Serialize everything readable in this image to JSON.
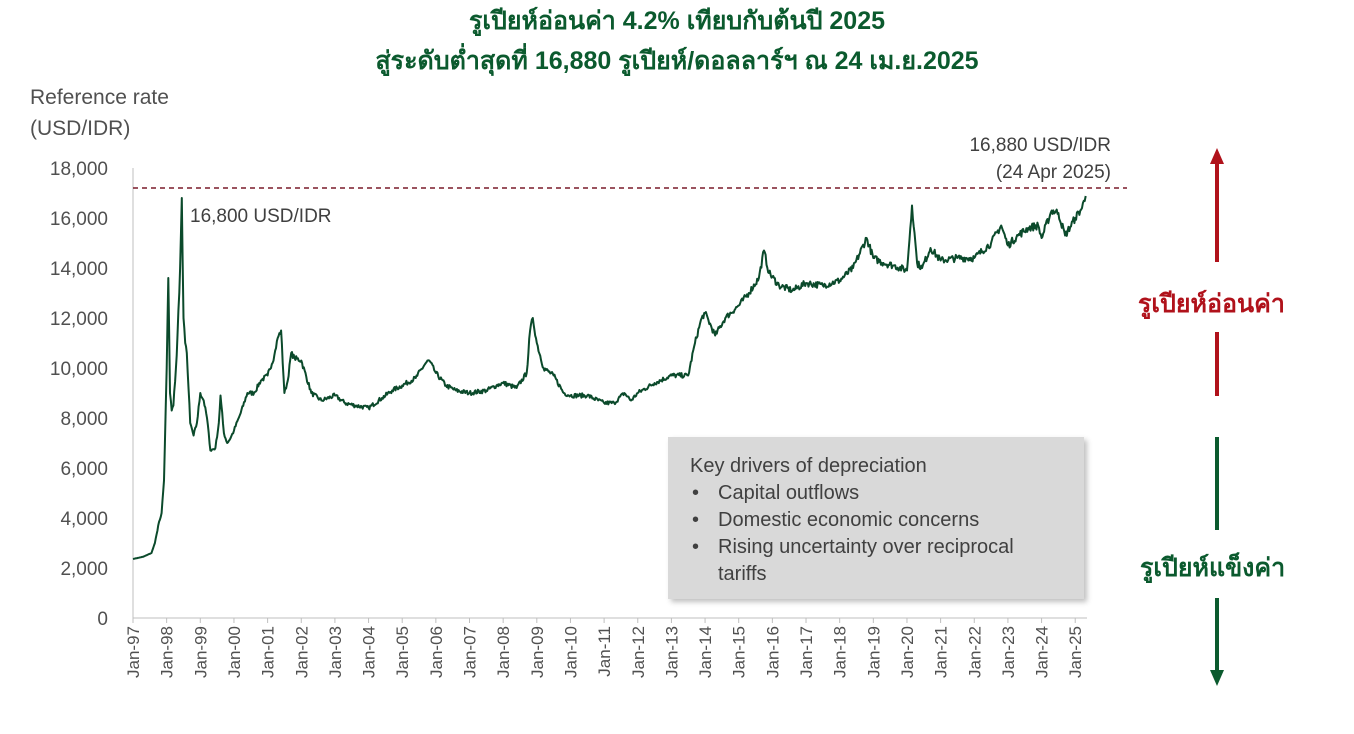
{
  "title_line1": "รูเปียห์อ่อนค่า 4.2% เทียบกับต้นปี 2025",
  "title_line2": "สู่ระดับต่ำสุดที่ 16,880 รูเปียห์/ดอลลาร์ฯ ณ 24 เม.ย.2025",
  "y_title_line1": "Reference rate",
  "y_title_line2": "(USD/IDR)",
  "peak_1998_label": "16,800 USD/IDR",
  "latest_label_line1": "16,880 USD/IDR",
  "latest_label_line2": "(24 Apr 2025)",
  "drivers_box": {
    "heading": "Key drivers of depreciation",
    "items": [
      "Capital outflows",
      "Domestic economic concerns",
      "Rising uncertainty over reciprocal tariffs"
    ]
  },
  "side_labels": {
    "weakening": "รูเปียห์อ่อนค่า",
    "strengthening": "รูเปียห์แข็งค่า"
  },
  "colors": {
    "line": "#0b4a2b",
    "title": "#0b5a2e",
    "weak_arrow": "#b0121b",
    "strong_arrow": "#0b5a2e",
    "reference_line": "#7a1a2a"
  },
  "chart_data": {
    "type": "line",
    "ylim": [
      0,
      18000
    ],
    "yticks": [
      "0",
      "2,000",
      "4,000",
      "6,000",
      "8,000",
      "10,000",
      "12,000",
      "14,000",
      "16,000",
      "18,000"
    ],
    "yticks_values": [
      0,
      2000,
      4000,
      6000,
      8000,
      10000,
      12000,
      14000,
      16000,
      18000
    ],
    "xticks": [
      "Jan-97",
      "Jan-98",
      "Jan-99",
      "Jan-00",
      "Jan-01",
      "Jan-02",
      "Jan-03",
      "Jan-04",
      "Jan-05",
      "Jan-06",
      "Jan-07",
      "Jan-08",
      "Jan-09",
      "Jan-10",
      "Jan-11",
      "Jan-12",
      "Jan-13",
      "Jan-14",
      "Jan-15",
      "Jan-16",
      "Jan-17",
      "Jan-18",
      "Jan-19",
      "Jan-20",
      "Jan-21",
      "Jan-22",
      "Jan-23",
      "Jan-24",
      "Jan-25"
    ],
    "xlim": [
      1997.0,
      2025.35
    ],
    "reference_line": 17200,
    "series": [
      {
        "x": [
          1997.0,
          1997.3,
          1997.55,
          1997.65,
          1997.75,
          1997.85,
          1997.92,
          1998.0,
          1998.05,
          1998.1,
          1998.15,
          1998.2,
          1998.3,
          1998.4,
          1998.45,
          1998.5,
          1998.55,
          1998.6,
          1998.7,
          1998.8,
          1998.9,
          1999.0,
          1999.1,
          1999.2,
          1999.3,
          1999.45,
          1999.55,
          1999.6,
          1999.7,
          1999.8,
          1999.9,
          2000.0,
          2000.2,
          2000.4,
          2000.6,
          2000.8,
          2001.0,
          2001.2,
          2001.3,
          2001.4,
          2001.5,
          2001.6,
          2001.7,
          2001.8,
          2002.0,
          2002.3,
          2002.6,
          2003.0,
          2003.3,
          2003.6,
          2004.0,
          2004.4,
          2004.7,
          2005.0,
          2005.4,
          2005.7,
          2005.8,
          2006.0,
          2006.3,
          2006.6,
          2007.0,
          2007.5,
          2007.8,
          2008.0,
          2008.4,
          2008.7,
          2008.8,
          2008.88,
          2009.0,
          2009.2,
          2009.5,
          2009.8,
          2010.0,
          2010.5,
          2011.0,
          2011.3,
          2011.6,
          2011.8,
          2012.0,
          2012.5,
          2013.0,
          2013.5,
          2013.7,
          2013.9,
          2014.0,
          2014.3,
          2014.6,
          2015.0,
          2015.3,
          2015.6,
          2015.75,
          2015.9,
          2016.2,
          2016.6,
          2017.0,
          2017.5,
          2018.0,
          2018.4,
          2018.8,
          2019.0,
          2019.3,
          2019.6,
          2020.0,
          2020.15,
          2020.25,
          2020.3,
          2020.45,
          2020.7,
          2021.0,
          2021.5,
          2022.0,
          2022.5,
          2022.8,
          2023.0,
          2023.3,
          2023.6,
          2023.9,
          2024.0,
          2024.3,
          2024.5,
          2024.7,
          2025.0,
          2025.2,
          2025.31
        ],
        "y": [
          2360,
          2450,
          2600,
          3000,
          3700,
          4200,
          5500,
          10000,
          13600,
          9000,
          8300,
          8500,
          10500,
          14000,
          16800,
          12000,
          11000,
          10600,
          7800,
          7300,
          7800,
          9000,
          8700,
          8000,
          6700,
          6800,
          7800,
          8900,
          7400,
          7000,
          7200,
          7500,
          8200,
          9000,
          9000,
          9500,
          9700,
          10500,
          11200,
          11500,
          9000,
          9500,
          10600,
          10400,
          10300,
          9000,
          8700,
          8900,
          8600,
          8500,
          8400,
          8800,
          9100,
          9300,
          9600,
          10200,
          10300,
          9800,
          9300,
          9100,
          9000,
          9100,
          9300,
          9400,
          9200,
          9800,
          11500,
          12000,
          11000,
          10000,
          9700,
          9000,
          8900,
          8900,
          8600,
          8600,
          9000,
          8700,
          9000,
          9400,
          9700,
          9700,
          11000,
          12000,
          12200,
          11300,
          12000,
          12500,
          13000,
          13600,
          14700,
          13800,
          13300,
          13100,
          13400,
          13300,
          13500,
          14000,
          15200,
          14400,
          14200,
          14100,
          13900,
          16500,
          15000,
          14200,
          14000,
          14800,
          14300,
          14400,
          14400,
          15000,
          15700,
          14900,
          15300,
          15600,
          15700,
          15200,
          16300,
          16200,
          15300,
          16000,
          16400,
          16880
        ]
      }
    ]
  }
}
